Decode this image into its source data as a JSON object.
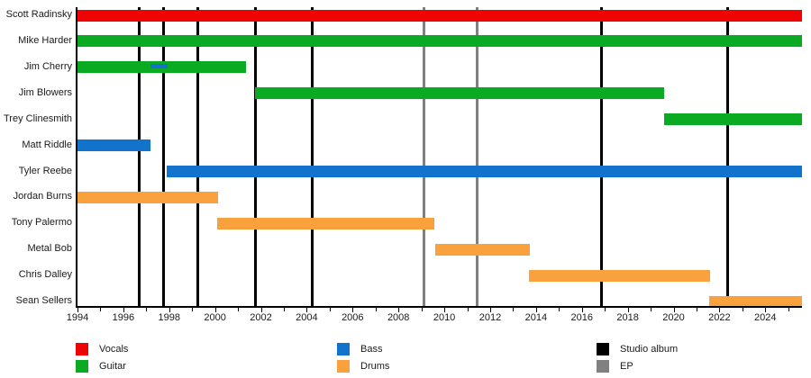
{
  "chart_data": {
    "type": "timeline-gantt",
    "title": "",
    "x_axis": {
      "start_year": 1994,
      "end_year": 2025.6,
      "labeled_ticks": [
        1994,
        1996,
        1998,
        2000,
        2002,
        2004,
        2006,
        2008,
        2010,
        2012,
        2014,
        2016,
        2018,
        2020,
        2022,
        2024
      ],
      "minor_tick_every_years": 1
    },
    "rows": [
      {
        "name": "Scott Radinsky",
        "segments": [
          {
            "role": "Vocals",
            "start": 1994,
            "end": 2025.6
          }
        ],
        "sub_segments": []
      },
      {
        "name": "Mike Harder",
        "segments": [
          {
            "role": "Guitar",
            "start": 1994,
            "end": 2025.6
          }
        ],
        "sub_segments": []
      },
      {
        "name": "Jim Cherry",
        "segments": [
          {
            "role": "Guitar",
            "start": 1994,
            "end": 2001.35
          }
        ],
        "sub_segments": [
          {
            "role": "Bass",
            "start": 1997.2,
            "end": 1997.95
          }
        ]
      },
      {
        "name": "Jim Blowers",
        "segments": [
          {
            "role": "Guitar",
            "start": 2001.75,
            "end": 2019.6
          }
        ],
        "sub_segments": []
      },
      {
        "name": "Trey Clinesmith",
        "segments": [
          {
            "role": "Guitar",
            "start": 2019.6,
            "end": 2025.6
          }
        ],
        "sub_segments": []
      },
      {
        "name": "Matt Riddle",
        "segments": [
          {
            "role": "Bass",
            "start": 1994,
            "end": 1997.2
          }
        ],
        "sub_segments": []
      },
      {
        "name": "Tyler Reebe",
        "segments": [
          {
            "role": "Bass",
            "start": 1997.9,
            "end": 2025.6
          }
        ],
        "sub_segments": []
      },
      {
        "name": "Jordan Burns",
        "segments": [
          {
            "role": "Drums",
            "start": 1994,
            "end": 2000.15
          }
        ],
        "sub_segments": []
      },
      {
        "name": "Tony Palermo",
        "segments": [
          {
            "role": "Drums",
            "start": 2000.1,
            "end": 2009.55
          }
        ],
        "sub_segments": []
      },
      {
        "name": "Metal Bob",
        "segments": [
          {
            "role": "Drums",
            "start": 2009.6,
            "end": 2013.75
          }
        ],
        "sub_segments": []
      },
      {
        "name": "Chris Dalley",
        "segments": [
          {
            "role": "Drums",
            "start": 2013.7,
            "end": 2021.6
          }
        ],
        "sub_segments": []
      },
      {
        "name": "Sean Sellers",
        "segments": [
          {
            "role": "Drums",
            "start": 2021.55,
            "end": 2025.6
          }
        ],
        "sub_segments": []
      }
    ],
    "events": {
      "studio_album_years": [
        1996.7,
        1997.75,
        1999.25,
        2001.75,
        2004.25,
        2016.85,
        2022.35
      ],
      "ep_years": [
        2009.1,
        2011.45
      ]
    },
    "colors": {
      "Vocals": "#ee0404",
      "Guitar": "#0aaa23",
      "Bass": "#1273cc",
      "Drums": "#f9a13c",
      "Studio album": "#000000",
      "EP": "#808080",
      "axis": "#000000"
    },
    "legend_columns": [
      {
        "items": [
          {
            "label": "Vocals",
            "color": "#ee0404"
          },
          {
            "label": "Guitar",
            "color": "#0aaa23"
          }
        ]
      },
      {
        "items": [
          {
            "label": "Bass",
            "color": "#1273cc"
          },
          {
            "label": "Drums",
            "color": "#f9a13c"
          }
        ]
      },
      {
        "items": [
          {
            "label": "Studio album",
            "color": "#000000"
          },
          {
            "label": "EP",
            "color": "#808080"
          }
        ]
      }
    ]
  }
}
